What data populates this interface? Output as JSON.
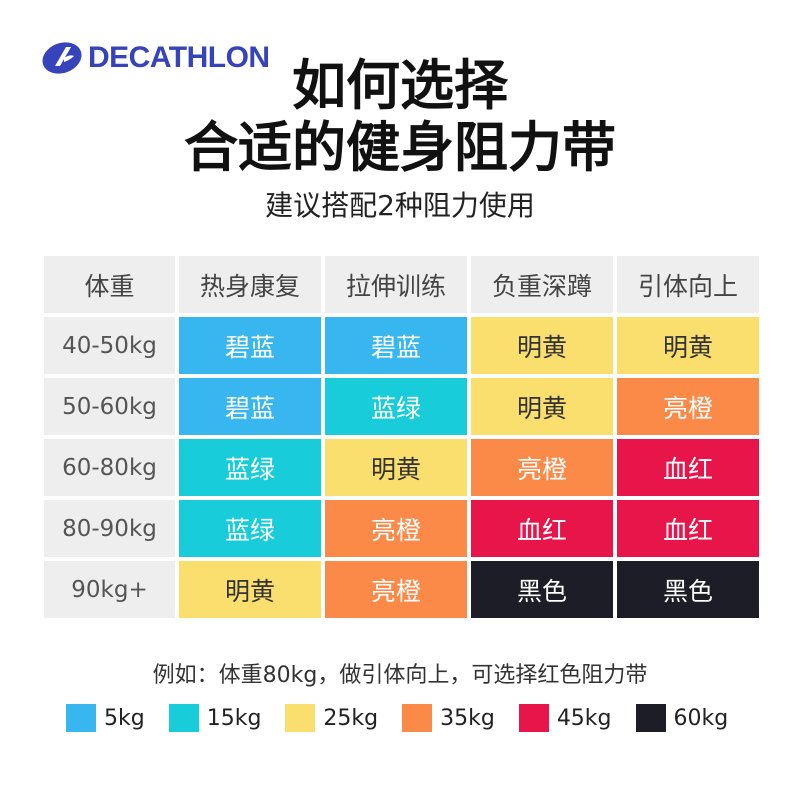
{
  "brand": {
    "name": "DECATHLON",
    "logo_icon": "decathlon-logo-icon",
    "color": "#3643ba"
  },
  "title": {
    "line1": "如何选择",
    "line2": "合适的健身阻力带"
  },
  "subtitle": "建议搭配2种阻力使用",
  "table": {
    "headers": [
      "体重",
      "热身康复",
      "拉伸训练",
      "负重深蹲",
      "引体向上"
    ],
    "rows": [
      {
        "weight": "40-50kg",
        "cells": [
          {
            "label": "碧蓝",
            "color": "#37b6f0"
          },
          {
            "label": "碧蓝",
            "color": "#37b6f0"
          },
          {
            "label": "明黄",
            "color": "#fade6e"
          },
          {
            "label": "明黄",
            "color": "#fade6e"
          }
        ]
      },
      {
        "weight": "50-60kg",
        "cells": [
          {
            "label": "碧蓝",
            "color": "#37b6f0"
          },
          {
            "label": "蓝绿",
            "color": "#18ccd9"
          },
          {
            "label": "明黄",
            "color": "#fade6e"
          },
          {
            "label": "亮橙",
            "color": "#fb8a48"
          }
        ]
      },
      {
        "weight": "60-80kg",
        "cells": [
          {
            "label": "蓝绿",
            "color": "#18ccd9"
          },
          {
            "label": "明黄",
            "color": "#fade6e"
          },
          {
            "label": "亮橙",
            "color": "#fb8a48"
          },
          {
            "label": "血红",
            "color": "#e8154a"
          }
        ]
      },
      {
        "weight": "80-90kg",
        "cells": [
          {
            "label": "蓝绿",
            "color": "#18ccd9"
          },
          {
            "label": "亮橙",
            "color": "#fb8a48"
          },
          {
            "label": "血红",
            "color": "#e8154a"
          },
          {
            "label": "血红",
            "color": "#e8154a"
          }
        ]
      },
      {
        "weight": "90kg+",
        "cells": [
          {
            "label": "明黄",
            "color": "#fade6e"
          },
          {
            "label": "亮橙",
            "color": "#fb8a48"
          },
          {
            "label": "黑色",
            "color": "#1d1d27"
          },
          {
            "label": "黑色",
            "color": "#1d1d27"
          }
        ]
      }
    ]
  },
  "note": "例如：体重80kg，做引体向上，可选择红色阻力带",
  "legend": [
    {
      "label": "5kg",
      "color": "#37b6f0"
    },
    {
      "label": "15kg",
      "color": "#18ccd9"
    },
    {
      "label": "25kg",
      "color": "#fade6e"
    },
    {
      "label": "35kg",
      "color": "#fb8a48"
    },
    {
      "label": "45kg",
      "color": "#e8154a"
    },
    {
      "label": "60kg",
      "color": "#1d1d27"
    }
  ]
}
